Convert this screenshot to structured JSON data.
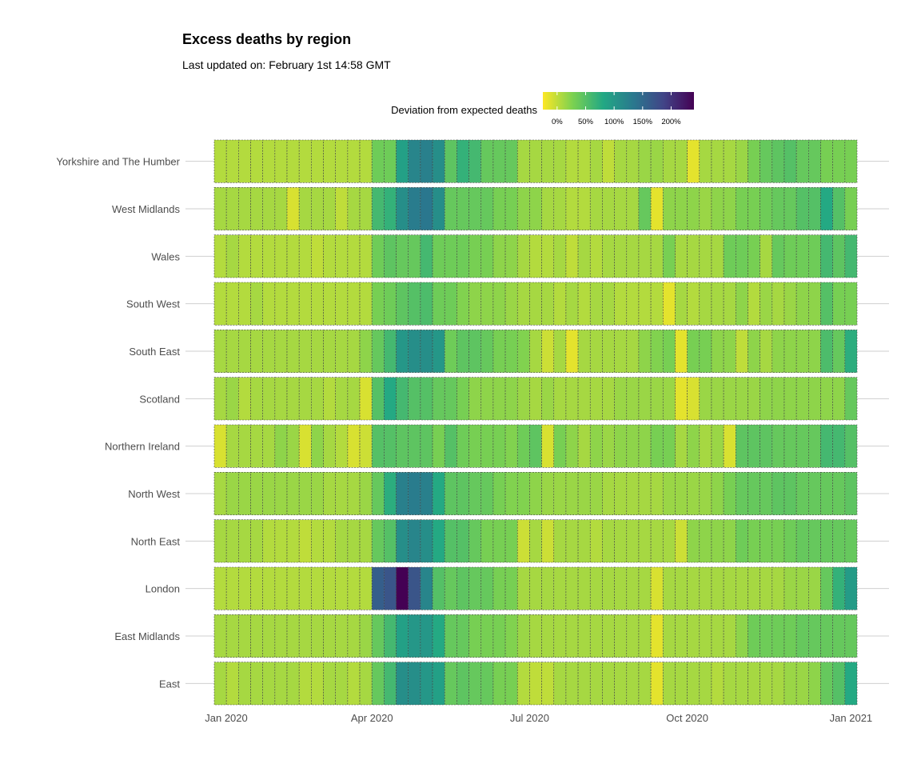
{
  "chart_data": {
    "type": "heatmap",
    "title": "Excess deaths by region",
    "subtitle": "Last updated on: February 1st 14:58 GMT",
    "legend": {
      "title": "Deviation from expected deaths",
      "ticks": [
        "0%",
        "50%",
        "100%",
        "150%",
        "200%"
      ],
      "tick_values": [
        0,
        50,
        100,
        150,
        200
      ],
      "range": [
        -25,
        240
      ],
      "placement": "top",
      "palette": [
        "#fde725",
        "#7ad151",
        "#22a884",
        "#2a788e",
        "#414487",
        "#440154"
      ]
    },
    "x_ticks": [
      {
        "label": "Jan 2020",
        "week": 0
      },
      {
        "label": "Apr 2020",
        "week": 13
      },
      {
        "label": "Jul 2020",
        "week": 26
      },
      {
        "label": "Oct 2020",
        "week": 39
      },
      {
        "label": "Jan 2021",
        "week": 52.5
      }
    ],
    "weeks": 53,
    "grid": true,
    "regions": [
      {
        "name": "Yorkshire and The Humber",
        "values": [
          5,
          5,
          5,
          5,
          5,
          5,
          5,
          5,
          5,
          5,
          5,
          5,
          5,
          35,
          35,
          90,
          120,
          125,
          110,
          45,
          70,
          60,
          40,
          40,
          40,
          10,
          10,
          10,
          10,
          5,
          5,
          10,
          0,
          10,
          10,
          15,
          15,
          10,
          10,
          -15,
          10,
          10,
          10,
          15,
          30,
          40,
          45,
          50,
          40,
          40,
          30,
          30,
          30
        ]
      },
      {
        "name": "West Midlands",
        "values": [
          10,
          10,
          10,
          10,
          10,
          10,
          -10,
          10,
          10,
          10,
          0,
          10,
          10,
          60,
          70,
          110,
          130,
          135,
          110,
          40,
          40,
          40,
          40,
          30,
          30,
          20,
          20,
          10,
          10,
          5,
          5,
          10,
          10,
          10,
          10,
          40,
          -15,
          20,
          20,
          20,
          15,
          20,
          20,
          30,
          30,
          35,
          40,
          40,
          50,
          50,
          80,
          50,
          30
        ]
      },
      {
        "name": "Wales",
        "values": [
          5,
          10,
          5,
          5,
          5,
          5,
          5,
          5,
          0,
          5,
          5,
          5,
          5,
          35,
          45,
          40,
          40,
          60,
          35,
          35,
          35,
          30,
          30,
          20,
          20,
          10,
          5,
          5,
          10,
          0,
          10,
          5,
          10,
          10,
          10,
          10,
          10,
          30,
          10,
          10,
          10,
          10,
          35,
          35,
          30,
          10,
          40,
          35,
          35,
          35,
          60,
          45,
          60
        ]
      },
      {
        "name": "South West",
        "values": [
          5,
          5,
          5,
          10,
          5,
          5,
          5,
          5,
          5,
          5,
          5,
          5,
          5,
          30,
          35,
          45,
          50,
          55,
          35,
          35,
          25,
          20,
          20,
          20,
          15,
          10,
          10,
          10,
          5,
          10,
          5,
          10,
          10,
          5,
          5,
          5,
          5,
          -15,
          10,
          5,
          10,
          10,
          10,
          20,
          5,
          15,
          10,
          15,
          20,
          20,
          50,
          30,
          30
        ]
      },
      {
        "name": "South East",
        "values": [
          10,
          10,
          10,
          10,
          10,
          10,
          10,
          10,
          10,
          10,
          10,
          10,
          20,
          40,
          60,
          100,
          110,
          110,
          100,
          35,
          45,
          45,
          40,
          30,
          30,
          25,
          10,
          -5,
          10,
          -15,
          10,
          10,
          10,
          10,
          10,
          20,
          25,
          30,
          -15,
          30,
          30,
          20,
          20,
          0,
          20,
          10,
          20,
          20,
          20,
          20,
          55,
          40,
          75
        ]
      },
      {
        "name": "Scotland",
        "values": [
          10,
          15,
          5,
          10,
          10,
          10,
          10,
          10,
          10,
          5,
          10,
          10,
          -10,
          50,
          80,
          60,
          50,
          50,
          40,
          40,
          30,
          20,
          20,
          20,
          20,
          15,
          10,
          15,
          10,
          10,
          10,
          10,
          10,
          15,
          15,
          15,
          15,
          15,
          -15,
          -10,
          15,
          15,
          15,
          15,
          15,
          20,
          20,
          20,
          20,
          20,
          20,
          20,
          40
        ]
      },
      {
        "name": "Northern Ireland",
        "values": [
          -10,
          10,
          10,
          10,
          10,
          20,
          15,
          -10,
          20,
          10,
          5,
          -10,
          -5,
          50,
          50,
          45,
          45,
          45,
          30,
          50,
          35,
          30,
          30,
          30,
          25,
          35,
          45,
          -10,
          30,
          20,
          10,
          20,
          15,
          20,
          20,
          20,
          30,
          30,
          10,
          20,
          10,
          15,
          -10,
          45,
          45,
          45,
          40,
          40,
          40,
          40,
          60,
          60,
          50
        ]
      },
      {
        "name": "North West",
        "values": [
          10,
          15,
          15,
          15,
          15,
          15,
          15,
          15,
          15,
          10,
          10,
          10,
          15,
          40,
          75,
          125,
          130,
          125,
          80,
          45,
          45,
          40,
          40,
          30,
          25,
          25,
          20,
          15,
          15,
          15,
          15,
          15,
          10,
          10,
          10,
          10,
          10,
          15,
          15,
          15,
          15,
          20,
          30,
          40,
          40,
          40,
          45,
          45,
          40,
          40,
          40,
          40,
          45
        ]
      },
      {
        "name": "North East",
        "values": [
          10,
          10,
          10,
          10,
          5,
          5,
          5,
          0,
          5,
          5,
          10,
          10,
          10,
          40,
          50,
          110,
          120,
          110,
          80,
          50,
          50,
          40,
          30,
          30,
          30,
          -5,
          10,
          -5,
          10,
          10,
          10,
          5,
          10,
          10,
          10,
          10,
          10,
          10,
          -5,
          20,
          20,
          20,
          20,
          35,
          30,
          30,
          30,
          35,
          40,
          40,
          40,
          40,
          40
        ]
      },
      {
        "name": "London",
        "values": [
          5,
          5,
          5,
          5,
          5,
          5,
          5,
          5,
          5,
          5,
          5,
          5,
          5,
          160,
          170,
          240,
          170,
          120,
          50,
          40,
          45,
          40,
          40,
          30,
          30,
          10,
          10,
          10,
          10,
          10,
          10,
          10,
          10,
          10,
          10,
          10,
          -10,
          10,
          10,
          10,
          10,
          10,
          10,
          10,
          10,
          10,
          10,
          15,
          15,
          15,
          40,
          70,
          95
        ]
      },
      {
        "name": "East Midlands",
        "values": [
          10,
          10,
          10,
          10,
          10,
          10,
          10,
          10,
          10,
          10,
          10,
          10,
          15,
          40,
          60,
          90,
          100,
          100,
          80,
          40,
          40,
          30,
          30,
          30,
          25,
          15,
          10,
          10,
          10,
          10,
          10,
          10,
          10,
          10,
          10,
          10,
          -15,
          10,
          10,
          10,
          10,
          10,
          10,
          20,
          35,
          35,
          35,
          35,
          40,
          40,
          40,
          40,
          40
        ]
      },
      {
        "name": "East",
        "values": [
          10,
          5,
          10,
          10,
          10,
          10,
          10,
          5,
          5,
          10,
          10,
          5,
          10,
          40,
          60,
          110,
          110,
          100,
          90,
          40,
          45,
          40,
          40,
          30,
          30,
          5,
          0,
          0,
          10,
          10,
          10,
          10,
          10,
          10,
          10,
          10,
          -15,
          10,
          10,
          10,
          10,
          5,
          10,
          10,
          10,
          10,
          10,
          15,
          15,
          20,
          40,
          50,
          80
        ]
      }
    ]
  }
}
